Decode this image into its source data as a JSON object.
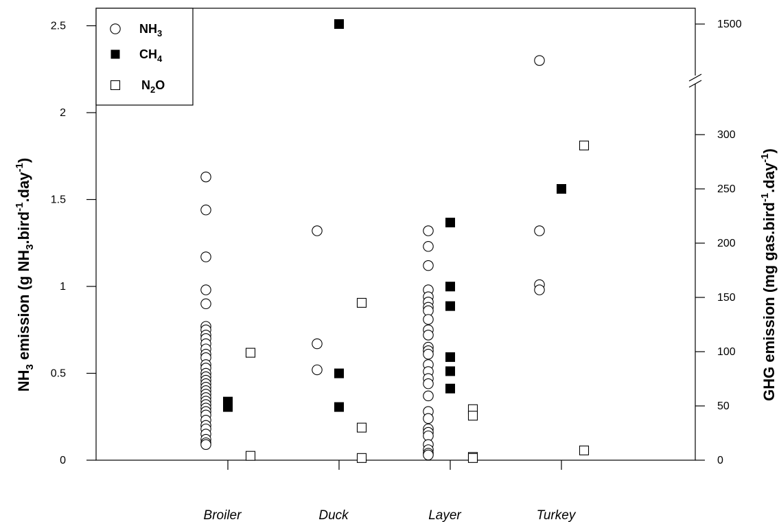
{
  "chart_data": {
    "type": "scatter",
    "categories": [
      "Broiler",
      "Duck",
      "Layer",
      "Turkey"
    ],
    "left_axis": {
      "title_parts": [
        "NH",
        "3",
        " emission (g NH",
        "3",
        ".bird",
        "-1",
        ".day",
        "-1",
        ")"
      ],
      "ylim": [
        0,
        2.5
      ],
      "ticks": [
        "0",
        "0.5",
        "1",
        "1.5",
        "2",
        "2.5"
      ]
    },
    "right_axis": {
      "title_parts": [
        "GHG emission (mg gas.bird",
        "-1",
        ".day",
        "-1",
        ")"
      ],
      "ticks": [
        "0",
        "50",
        "100",
        "150",
        "200",
        "250",
        "300",
        "1500"
      ],
      "broken": true,
      "break_between": [
        300,
        1500
      ]
    },
    "legend": {
      "position": "top-left",
      "entries": [
        {
          "series": "NH3",
          "base": "NH",
          "sub": "3",
          "marker": "open-circle"
        },
        {
          "series": "CH4",
          "base": "CH",
          "sub": "4",
          "marker": "filled-square"
        },
        {
          "series": "N2O",
          "base": "N",
          "sub": "2",
          "tail": "O",
          "marker": "open-square"
        }
      ]
    },
    "series": [
      {
        "name": "NH3",
        "axis": "left",
        "unit": "g NH3/bird/day",
        "points": {
          "Broiler": [
            1.63,
            1.44,
            1.17,
            0.98,
            0.9,
            0.77,
            0.75,
            0.72,
            0.7,
            0.67,
            0.64,
            0.61,
            0.59,
            0.55,
            0.53,
            0.5,
            0.48,
            0.46,
            0.44,
            0.42,
            0.4,
            0.38,
            0.36,
            0.34,
            0.32,
            0.3,
            0.28,
            0.26,
            0.23,
            0.2,
            0.18,
            0.15,
            0.12,
            0.1,
            0.09
          ],
          "Duck": [
            1.32,
            0.67,
            0.52
          ],
          "Layer": [
            1.32,
            1.23,
            1.12,
            0.98,
            0.94,
            0.91,
            0.88,
            0.86,
            0.81,
            0.75,
            0.72,
            0.65,
            0.63,
            0.61,
            0.55,
            0.51,
            0.47,
            0.44,
            0.37,
            0.28,
            0.24,
            0.18,
            0.16,
            0.14,
            0.09,
            0.06,
            0.04,
            0.03
          ],
          "Turkey": [
            2.3,
            1.32,
            1.01,
            0.98
          ]
        }
      },
      {
        "name": "CH4",
        "axis": "right",
        "unit": "mg gas/bird/day",
        "points": {
          "Broiler": [
            54,
            49
          ],
          "Duck": [
            1500,
            80,
            49
          ],
          "Layer": [
            219,
            160,
            142,
            95,
            82,
            66
          ],
          "Turkey": [
            250
          ]
        }
      },
      {
        "name": "N2O",
        "axis": "right",
        "unit": "mg gas/bird/day",
        "points": {
          "Broiler": [
            99,
            4
          ],
          "Duck": [
            145,
            30,
            2
          ],
          "Layer": [
            47,
            41,
            3,
            2
          ],
          "Turkey": [
            290,
            9
          ]
        }
      }
    ]
  }
}
